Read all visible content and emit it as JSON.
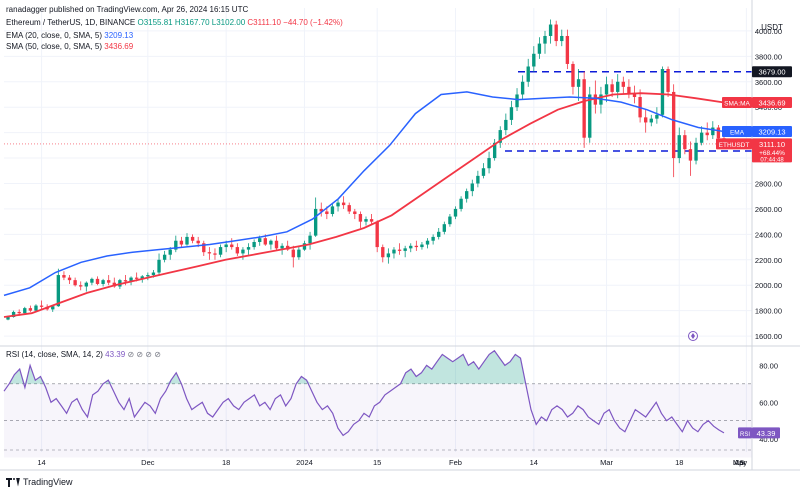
{
  "header": {
    "publisher": "ranadagger published on TradingView.com, Apr 26, 2024 16:15 UTC",
    "symbol_line": "Ethereum / TetherUS, 1D, BINANCE",
    "ohlc": {
      "o": "O3155.81",
      "h": "H3167.70",
      "l": "L3102.00",
      "c": "C3111.10",
      "chg": "−44.70 (−1.42%)"
    },
    "ema_label": "EMA (20, close, 0, SMA, 5)",
    "ema_value": "3209.13",
    "sma_label": "SMA (50, close, 0, SMA, 5)",
    "sma_value": "3436.69",
    "rsi_label": "RSI (14, close, SMA, 14, 2)",
    "rsi_value": "43.39"
  },
  "footer": {
    "brand": "TradingView"
  },
  "colors": {
    "up": "#089981",
    "down": "#f23645",
    "ema": "#2962ff",
    "sma": "#f23645",
    "rsi": "#7e57c2",
    "level": "#0d1bd8"
  },
  "chart_data": {
    "type": "candlestick",
    "price_axis": {
      "label": "USDT",
      "ticks": [
        1600,
        1800,
        2000,
        2200,
        2400,
        2600,
        2800,
        3000,
        3200,
        3400,
        3600,
        3800,
        4000
      ],
      "ylim": [
        1530,
        4180
      ]
    },
    "x_ticks": [
      "14",
      "Dec",
      "18",
      "2024",
      "15",
      "Feb",
      "14",
      "Mar",
      "18",
      "Apr",
      "15",
      "May"
    ],
    "horizontal_levels": [
      {
        "label": "3679.00",
        "value": 3679
      },
      {
        "label": "3056.00",
        "value": 3056
      }
    ],
    "tags": {
      "sma": {
        "name": "SMA:MA",
        "value": "3436.69"
      },
      "ema": {
        "name": "EMA",
        "value": "3209.13"
      },
      "last": {
        "name": "ETHUSDT",
        "value": "3111.10",
        "change": "+68.44%",
        "countdown": "07:44:48"
      }
    },
    "series": [
      {
        "name": "ETHUSDT",
        "ohlc": [
          [
            1730,
            1760,
            1725,
            1750
          ],
          [
            1750,
            1800,
            1745,
            1790
          ],
          [
            1790,
            1810,
            1760,
            1780
          ],
          [
            1780,
            1830,
            1775,
            1820
          ],
          [
            1820,
            1840,
            1790,
            1800
          ],
          [
            1800,
            1850,
            1795,
            1840
          ],
          [
            1840,
            1880,
            1810,
            1830
          ],
          [
            1830,
            1850,
            1800,
            1810
          ],
          [
            1810,
            1840,
            1790,
            1835
          ],
          [
            1835,
            2130,
            1830,
            2080
          ],
          [
            2080,
            2110,
            2040,
            2060
          ],
          [
            2060,
            2080,
            2010,
            2040
          ],
          [
            2040,
            2060,
            1990,
            2000
          ],
          [
            2000,
            2030,
            1960,
            1990
          ],
          [
            1990,
            2030,
            1950,
            2020
          ],
          [
            2020,
            2060,
            2000,
            2050
          ],
          [
            2050,
            2070,
            2000,
            2010
          ],
          [
            2010,
            2050,
            1990,
            2040
          ],
          [
            2040,
            2080,
            2000,
            2020
          ],
          [
            2020,
            2060,
            1980,
            1990
          ],
          [
            1990,
            2050,
            1970,
            2040
          ],
          [
            2040,
            2080,
            2000,
            2030
          ],
          [
            2030,
            2070,
            2000,
            2060
          ],
          [
            2060,
            2100,
            2030,
            2050
          ],
          [
            2050,
            2080,
            2020,
            2070
          ],
          [
            2070,
            2100,
            2040,
            2080
          ],
          [
            2080,
            2120,
            2060,
            2100
          ],
          [
            2100,
            2250,
            2080,
            2200
          ],
          [
            2200,
            2270,
            2180,
            2240
          ],
          [
            2240,
            2300,
            2200,
            2280
          ],
          [
            2280,
            2390,
            2260,
            2350
          ],
          [
            2350,
            2380,
            2300,
            2320
          ],
          [
            2320,
            2410,
            2310,
            2380
          ],
          [
            2380,
            2400,
            2330,
            2350
          ],
          [
            2350,
            2380,
            2300,
            2330
          ],
          [
            2330,
            2350,
            2230,
            2260
          ],
          [
            2260,
            2300,
            2200,
            2250
          ],
          [
            2250,
            2290,
            2200,
            2240
          ],
          [
            2240,
            2320,
            2220,
            2300
          ],
          [
            2300,
            2350,
            2260,
            2320
          ],
          [
            2320,
            2370,
            2280,
            2300
          ],
          [
            2300,
            2330,
            2230,
            2250
          ],
          [
            2250,
            2300,
            2200,
            2280
          ],
          [
            2280,
            2330,
            2240,
            2300
          ],
          [
            2300,
            2360,
            2280,
            2340
          ],
          [
            2340,
            2390,
            2310,
            2370
          ],
          [
            2370,
            2400,
            2310,
            2320
          ],
          [
            2320,
            2360,
            2280,
            2350
          ],
          [
            2350,
            2390,
            2270,
            2290
          ],
          [
            2290,
            2330,
            2240,
            2310
          ],
          [
            2310,
            2350,
            2270,
            2280
          ],
          [
            2280,
            2310,
            2140,
            2220
          ],
          [
            2220,
            2300,
            2200,
            2280
          ],
          [
            2280,
            2350,
            2270,
            2330
          ],
          [
            2330,
            2420,
            2280,
            2390
          ],
          [
            2390,
            2690,
            2380,
            2600
          ],
          [
            2600,
            2650,
            2540,
            2580
          ],
          [
            2580,
            2620,
            2520,
            2560
          ],
          [
            2560,
            2640,
            2540,
            2620
          ],
          [
            2620,
            2680,
            2580,
            2650
          ],
          [
            2650,
            2700,
            2600,
            2630
          ],
          [
            2630,
            2650,
            2560,
            2580
          ],
          [
            2580,
            2600,
            2520,
            2560
          ],
          [
            2560,
            2580,
            2450,
            2500
          ],
          [
            2500,
            2540,
            2470,
            2520
          ],
          [
            2520,
            2560,
            2480,
            2500
          ],
          [
            2500,
            2510,
            2260,
            2300
          ],
          [
            2300,
            2320,
            2180,
            2220
          ],
          [
            2220,
            2290,
            2170,
            2250
          ],
          [
            2250,
            2300,
            2210,
            2280
          ],
          [
            2280,
            2330,
            2240,
            2270
          ],
          [
            2270,
            2310,
            2220,
            2290
          ],
          [
            2290,
            2330,
            2260,
            2310
          ],
          [
            2310,
            2350,
            2270,
            2300
          ],
          [
            2300,
            2340,
            2280,
            2320
          ],
          [
            2320,
            2370,
            2290,
            2350
          ],
          [
            2350,
            2400,
            2320,
            2380
          ],
          [
            2380,
            2450,
            2360,
            2420
          ],
          [
            2420,
            2500,
            2400,
            2480
          ],
          [
            2480,
            2560,
            2460,
            2540
          ],
          [
            2540,
            2620,
            2520,
            2600
          ],
          [
            2600,
            2700,
            2580,
            2680
          ],
          [
            2680,
            2760,
            2650,
            2740
          ],
          [
            2740,
            2830,
            2700,
            2800
          ],
          [
            2800,
            2900,
            2770,
            2860
          ],
          [
            2860,
            2960,
            2840,
            2920
          ],
          [
            2920,
            3050,
            2880,
            3000
          ],
          [
            3000,
            3150,
            2980,
            3120
          ],
          [
            3120,
            3250,
            3080,
            3220
          ],
          [
            3220,
            3350,
            3180,
            3300
          ],
          [
            3300,
            3450,
            3260,
            3400
          ],
          [
            3400,
            3550,
            3370,
            3500
          ],
          [
            3500,
            3650,
            3460,
            3600
          ],
          [
            3600,
            3780,
            3560,
            3720
          ],
          [
            3720,
            3880,
            3680,
            3820
          ],
          [
            3820,
            3950,
            3780,
            3900
          ],
          [
            3900,
            4000,
            3820,
            3960
          ],
          [
            3960,
            4090,
            3900,
            4050
          ],
          [
            4050,
            4080,
            3880,
            3920
          ],
          [
            3920,
            4010,
            3880,
            3960
          ],
          [
            3960,
            4010,
            3700,
            3740
          ],
          [
            3740,
            3760,
            3500,
            3560
          ],
          [
            3560,
            3700,
            3450,
            3620
          ],
          [
            3620,
            3680,
            3080,
            3160
          ],
          [
            3160,
            3560,
            3120,
            3500
          ],
          [
            3500,
            3610,
            3350,
            3420
          ],
          [
            3420,
            3560,
            3350,
            3500
          ],
          [
            3500,
            3640,
            3440,
            3580
          ],
          [
            3580,
            3620,
            3480,
            3520
          ],
          [
            3520,
            3660,
            3470,
            3600
          ],
          [
            3600,
            3640,
            3500,
            3560
          ],
          [
            3560,
            3620,
            3470,
            3510
          ],
          [
            3510,
            3570,
            3430,
            3480
          ],
          [
            3480,
            3540,
            3280,
            3320
          ],
          [
            3320,
            3380,
            3200,
            3280
          ],
          [
            3280,
            3340,
            3250,
            3310
          ],
          [
            3310,
            3400,
            3270,
            3340
          ],
          [
            3340,
            3720,
            3320,
            3700
          ],
          [
            3700,
            3720,
            3480,
            3520
          ],
          [
            3520,
            3580,
            2850,
            3000
          ],
          [
            3000,
            3240,
            2960,
            3180
          ],
          [
            3180,
            3220,
            3030,
            3070
          ],
          [
            3070,
            3130,
            2860,
            2980
          ],
          [
            2980,
            3160,
            2950,
            3120
          ],
          [
            3120,
            3250,
            3100,
            3200
          ],
          [
            3200,
            3280,
            3140,
            3180
          ],
          [
            3180,
            3290,
            3150,
            3240
          ],
          [
            3240,
            3260,
            3120,
            3156
          ],
          [
            3156,
            3168,
            3102,
            3111
          ]
        ]
      },
      {
        "name": "EMA",
        "values": [
          1920,
          1980,
          2100,
          2180,
          2230,
          2260,
          2280,
          2300,
          2320,
          2350,
          2380,
          2420,
          2520,
          2680,
          2900,
          3100,
          3350,
          3500,
          3520,
          3480,
          3460,
          3470,
          3480,
          3470,
          3440,
          3380,
          3300,
          3240,
          3209
        ]
      },
      {
        "name": "SMA",
        "values": [
          1750,
          1780,
          1860,
          1940,
          2000,
          2050,
          2100,
          2150,
          2200,
          2240,
          2280,
          2320,
          2380,
          2450,
          2550,
          2700,
          2850,
          3000,
          3150,
          3270,
          3380,
          3450,
          3500,
          3510,
          3500,
          3470,
          3437
        ]
      },
      {
        "name": "RSI",
        "ylim": [
          33,
          90
        ],
        "ticks": [
          40,
          60,
          80
        ],
        "bands": [
          30,
          70
        ],
        "overbought_fill": "#089981",
        "values": [
          66,
          70,
          75,
          78,
          68,
          80,
          72,
          74,
          68,
          60,
          62,
          58,
          54,
          60,
          62,
          56,
          52,
          64,
          66,
          70,
          72,
          66,
          60,
          56,
          62,
          52,
          56,
          60,
          58,
          54,
          62,
          66,
          72,
          76,
          70,
          62,
          56,
          58,
          60,
          54,
          52,
          56,
          60,
          62,
          58,
          56,
          60,
          62,
          64,
          58,
          60,
          56,
          62,
          64,
          58,
          62,
          70,
          74,
          72,
          66,
          60,
          56,
          58,
          54,
          46,
          42,
          44,
          48,
          50,
          54,
          52,
          58,
          60,
          64,
          66,
          68,
          70,
          76,
          78,
          74,
          76,
          80,
          78,
          82,
          86,
          84,
          82,
          84,
          86,
          80,
          82,
          78,
          82,
          86,
          88,
          84,
          80,
          82,
          86,
          84,
          70,
          56,
          48,
          52,
          50,
          56,
          58,
          56,
          52,
          54,
          58,
          56,
          52,
          50,
          48,
          54,
          56,
          50,
          46,
          44,
          50,
          56,
          54,
          52,
          56,
          60,
          54,
          50,
          52,
          48,
          44,
          50,
          46,
          44,
          48,
          50,
          47,
          45,
          43.39
        ]
      }
    ]
  }
}
